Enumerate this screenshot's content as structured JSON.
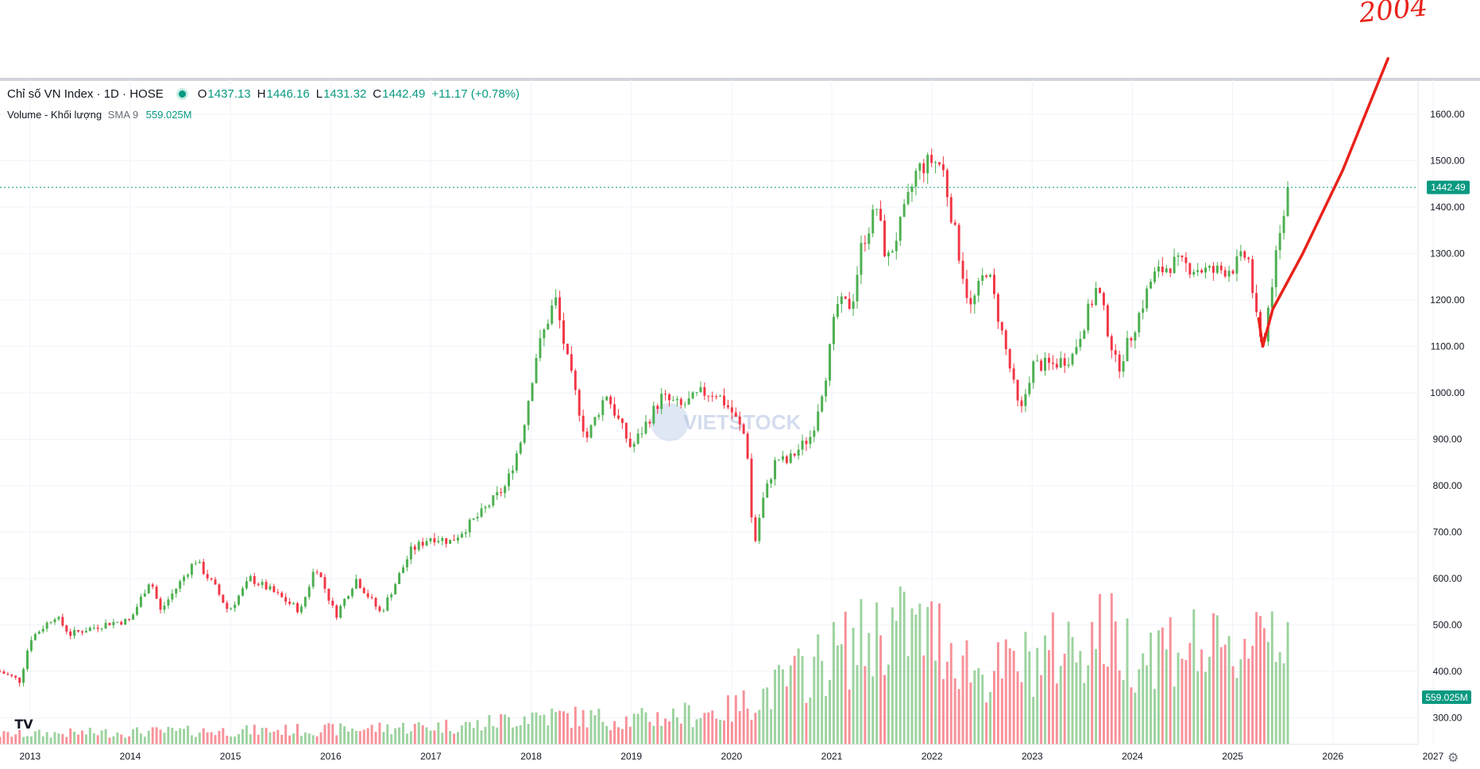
{
  "legend": {
    "symbol": "Chỉ số VN Index · 1D · HOSE",
    "open_label": "O",
    "open": "1437.13",
    "high_label": "H",
    "high": "1446.16",
    "low_label": "L",
    "low": "1431.32",
    "close_label": "C",
    "close": "1442.49",
    "change": "+11.17 (+0.78%)"
  },
  "volume_legend": {
    "name": "Volume - Khối lượng",
    "sma": "SMA 9",
    "value": "559.025M"
  },
  "watermark": "VIETSTOCK",
  "tv_logo": "TV",
  "annotation_text": "2004",
  "colors": {
    "up": "#4caf50",
    "down": "#f23645",
    "accent": "#089981",
    "drawing": "#e8221b",
    "grid": "#f0f3fa",
    "axis_text": "#131722"
  },
  "chart_data": {
    "type": "candlestick",
    "y_axis": {
      "range": [
        243,
        1675
      ],
      "ticks": [
        "300.00",
        "400.00",
        "500.00",
        "600.00",
        "700.00",
        "800.00",
        "900.00",
        "1000.00",
        "1100.00",
        "1200.00",
        "1300.00",
        "1400.00",
        "1500.00",
        "1600.00"
      ]
    },
    "x_axis": {
      "range": [
        2012.7,
        2026.85
      ],
      "ticks": [
        "2013",
        "2014",
        "2015",
        "2016",
        "2017",
        "2018",
        "2019",
        "2020",
        "2021",
        "2022",
        "2023",
        "2024",
        "2025",
        "2026",
        "2027"
      ]
    },
    "last_price_label": "1442.49",
    "last_volume_label": "559.025M",
    "price_path": [
      [
        2012.7,
        400
      ],
      [
        2012.9,
        380
      ],
      [
        2013.0,
        470
      ],
      [
        2013.25,
        520
      ],
      [
        2013.4,
        480
      ],
      [
        2013.55,
        490
      ],
      [
        2013.8,
        505
      ],
      [
        2014.0,
        510
      ],
      [
        2014.2,
        600
      ],
      [
        2014.3,
        530
      ],
      [
        2014.65,
        640
      ],
      [
        2014.85,
        580
      ],
      [
        2014.98,
        530
      ],
      [
        2015.2,
        600
      ],
      [
        2015.4,
        575
      ],
      [
        2015.7,
        530
      ],
      [
        2015.85,
        630
      ],
      [
        2016.05,
        520
      ],
      [
        2016.25,
        600
      ],
      [
        2016.5,
        525
      ],
      [
        2016.8,
        660
      ],
      [
        2017.0,
        690
      ],
      [
        2017.2,
        680
      ],
      [
        2017.5,
        740
      ],
      [
        2017.75,
        800
      ],
      [
        2017.9,
        900
      ],
      [
        2018.05,
        1080
      ],
      [
        2018.24,
        1205
      ],
      [
        2018.35,
        1080
      ],
      [
        2018.45,
        990
      ],
      [
        2018.55,
        900
      ],
      [
        2018.75,
        1000
      ],
      [
        2018.85,
        950
      ],
      [
        2019.0,
        880
      ],
      [
        2019.3,
        990
      ],
      [
        2019.5,
        970
      ],
      [
        2019.7,
        1000
      ],
      [
        2019.85,
        1000
      ],
      [
        2020.0,
        960
      ],
      [
        2020.15,
        900
      ],
      [
        2020.22,
        660
      ],
      [
        2020.3,
        760
      ],
      [
        2020.45,
        860
      ],
      [
        2020.55,
        850
      ],
      [
        2020.8,
        910
      ],
      [
        2020.95,
        1050
      ],
      [
        2021.05,
        1190
      ],
      [
        2021.2,
        1190
      ],
      [
        2021.3,
        1320
      ],
      [
        2021.45,
        1400
      ],
      [
        2021.55,
        1280
      ],
      [
        2021.7,
        1370
      ],
      [
        2021.85,
        1480
      ],
      [
        2022.0,
        1500
      ],
      [
        2022.1,
        1490
      ],
      [
        2022.25,
        1320
      ],
      [
        2022.38,
        1180
      ],
      [
        2022.55,
        1270
      ],
      [
        2022.75,
        1080
      ],
      [
        2022.88,
        950
      ],
      [
        2023.0,
        1060
      ],
      [
        2023.2,
        1060
      ],
      [
        2023.4,
        1080
      ],
      [
        2023.65,
        1230
      ],
      [
        2023.85,
        1050
      ],
      [
        2024.0,
        1130
      ],
      [
        2024.2,
        1250
      ],
      [
        2024.4,
        1280
      ],
      [
        2024.6,
        1270
      ],
      [
        2024.8,
        1260
      ],
      [
        2025.0,
        1270
      ],
      [
        2025.15,
        1300
      ],
      [
        2025.26,
        1120
      ],
      [
        2025.3,
        1100
      ],
      [
        2025.4,
        1250
      ],
      [
        2025.5,
        1370
      ],
      [
        2025.55,
        1442.49
      ]
    ],
    "volume_path": [
      [
        2012.7,
        20
      ],
      [
        2014.0,
        25
      ],
      [
        2016.0,
        30
      ],
      [
        2017.5,
        40
      ],
      [
        2018.0,
        60
      ],
      [
        2019.0,
        50
      ],
      [
        2020.0,
        70
      ],
      [
        2020.5,
        120
      ],
      [
        2021.0,
        180
      ],
      [
        2021.6,
        240
      ],
      [
        2022.1,
        220
      ],
      [
        2022.5,
        140
      ],
      [
        2023.0,
        170
      ],
      [
        2023.7,
        230
      ],
      [
        2024.0,
        190
      ],
      [
        2024.5,
        210
      ],
      [
        2025.0,
        170
      ],
      [
        2025.3,
        270
      ],
      [
        2025.55,
        220
      ]
    ],
    "drawing_path": [
      [
        2025.26,
        1160
      ],
      [
        2025.3,
        1100
      ],
      [
        2025.4,
        1180
      ],
      [
        2025.7,
        1300
      ],
      [
        2026.1,
        1480
      ],
      [
        2026.55,
        1720
      ]
    ]
  }
}
